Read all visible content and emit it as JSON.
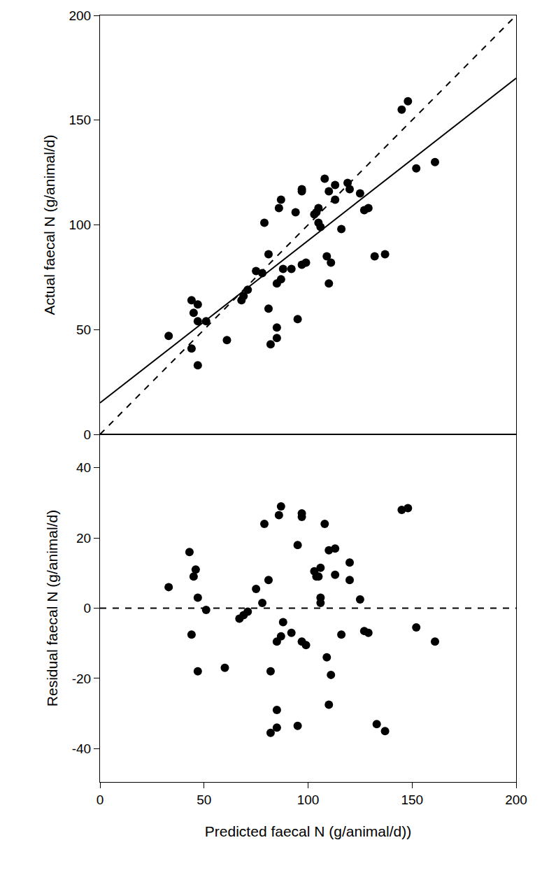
{
  "chart_data": [
    {
      "type": "scatter",
      "ylabel": "Actual faecal N (g/animal/d)",
      "xlim": [
        0,
        200
      ],
      "ylim": [
        0,
        200
      ],
      "xticks": [
        0,
        50,
        100,
        150,
        200
      ],
      "yticks": [
        0,
        50,
        100,
        150,
        200
      ],
      "tick_labels": "y",
      "grid": false,
      "series": [
        {
          "type": "scatter",
          "marker": "circle",
          "color": "#000000",
          "x": [
            33,
            44,
            45,
            44,
            47,
            47,
            47,
            51,
            61,
            68,
            69,
            71,
            75,
            78,
            79,
            81,
            81,
            82,
            85,
            85,
            85,
            86,
            87,
            87,
            88,
            92,
            94,
            95,
            97,
            97,
            97,
            99,
            103,
            104,
            105,
            105,
            106,
            108,
            109,
            110,
            110,
            111,
            113,
            113,
            116,
            119,
            120,
            125,
            127,
            129,
            132,
            137,
            145,
            148,
            152,
            161
          ],
          "values": [
            47,
            64,
            58,
            41,
            62,
            54,
            33,
            54,
            45,
            64,
            66,
            69,
            78,
            77,
            101,
            86,
            60,
            43,
            51,
            72,
            46,
            108,
            112,
            74,
            79,
            79,
            106,
            55,
            117,
            116,
            81,
            82,
            105,
            106,
            108,
            101,
            99,
            122,
            85,
            116,
            72,
            82,
            119,
            112,
            98,
            120,
            117,
            115,
            107,
            108,
            85,
            86,
            155,
            159,
            127,
            130
          ]
        },
        {
          "type": "line",
          "line_style": "solid",
          "color": "#000000",
          "x": [
            0,
            200
          ],
          "values": [
            15,
            170
          ]
        },
        {
          "type": "line",
          "line_style": "dash",
          "color": "#000000",
          "x": [
            0,
            200
          ],
          "values": [
            0,
            200
          ]
        }
      ]
    },
    {
      "type": "scatter",
      "xlabel": "Predicted faecal N (g/animal/d))",
      "ylabel": "Residual faecal N (g/animal/d)",
      "xlim": [
        0,
        200
      ],
      "ylim": [
        -49.5,
        49.5
      ],
      "xticks": [
        0,
        50,
        100,
        150,
        200
      ],
      "yticks": [
        -40,
        -20,
        0,
        20,
        40
      ],
      "grid": false,
      "series": [
        {
          "type": "scatter",
          "marker": "circle",
          "color": "#000000",
          "x": [
            33,
            43,
            44,
            45,
            46,
            47,
            47,
            51,
            60,
            67,
            69,
            71,
            75,
            78,
            79,
            81,
            82,
            82,
            85,
            85,
            85,
            86,
            87,
            87,
            88,
            92,
            95,
            95,
            97,
            97,
            97,
            99,
            103,
            104,
            105,
            106,
            106,
            106,
            108,
            109,
            110,
            110,
            111,
            113,
            113,
            116,
            120,
            120,
            125,
            127,
            129,
            133,
            137,
            145,
            148,
            152,
            161
          ],
          "values": [
            6,
            16,
            -7.5,
            9,
            11,
            3,
            -18,
            -0.5,
            -17,
            -3,
            -2,
            -1,
            5.5,
            1.5,
            24,
            8,
            -18,
            -35.5,
            -29,
            -9.5,
            -34,
            26.5,
            29,
            -8,
            -4,
            -7,
            18,
            -33.5,
            27,
            26,
            -9.5,
            -10.5,
            10.5,
            9,
            9,
            11.5,
            3,
            1.5,
            24,
            -14,
            16.5,
            -27.5,
            -19,
            17,
            9.5,
            -7.5,
            13,
            8,
            2.5,
            -6.5,
            -7,
            -33,
            -35,
            28,
            28.5,
            -5.5,
            -9.5
          ]
        },
        {
          "type": "line",
          "line_style": "dash",
          "color": "#000000",
          "x": [
            0,
            200
          ],
          "values": [
            0,
            0
          ]
        }
      ]
    }
  ]
}
